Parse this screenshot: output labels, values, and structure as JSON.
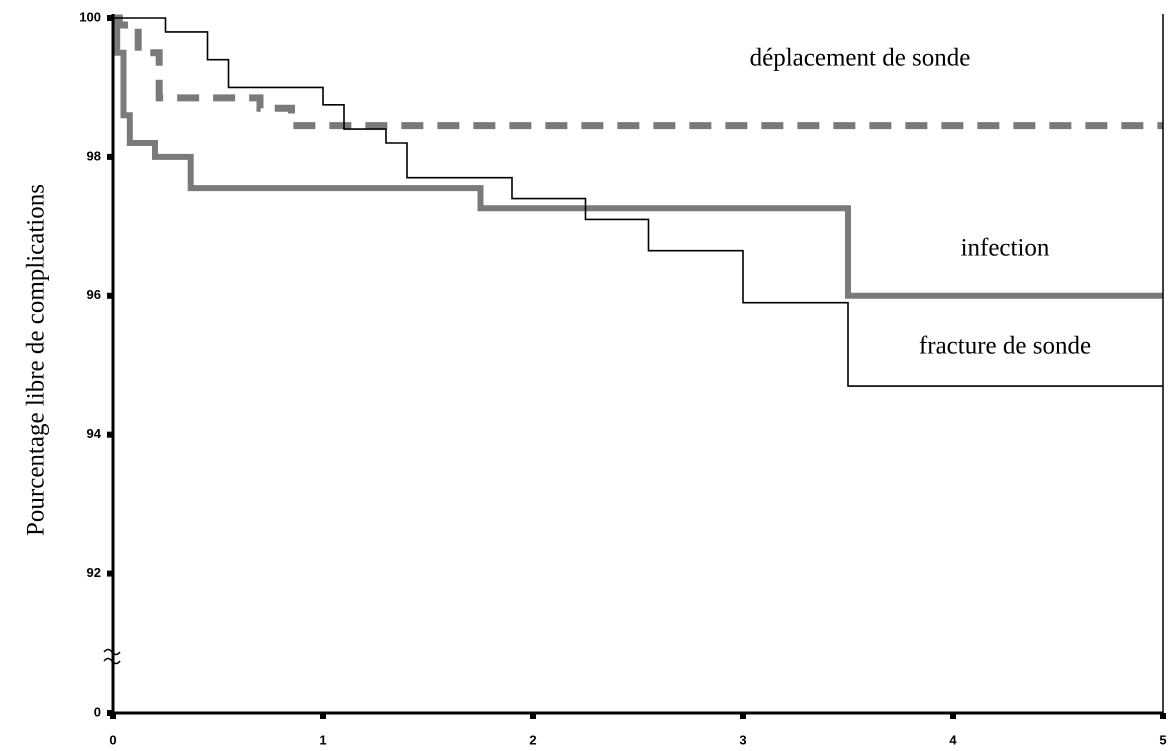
{
  "chart_data": {
    "type": "step",
    "y_label": "Pourcentage libre de complications",
    "xlim": [
      0,
      5
    ],
    "xticks": [
      0,
      1,
      2,
      3,
      4,
      5
    ],
    "ylim": [
      0,
      100
    ],
    "y_break": [
      0,
      91
    ],
    "yticks": [
      0,
      92,
      94,
      96,
      98,
      100
    ],
    "grid": false,
    "series": [
      {
        "name": "déplacement de sonde",
        "color": "#7a7a7a",
        "style": "dashed",
        "x": [
          0,
          0.03,
          0.12,
          0.22,
          0.7,
          0.85
        ],
        "values": [
          100,
          99.9,
          99.5,
          98.85,
          98.7,
          98.45
        ]
      },
      {
        "name": "infection",
        "color": "#7a7a7a",
        "style": "thick",
        "x": [
          0,
          0.02,
          0.05,
          0.08,
          0.2,
          0.37,
          1.75,
          3.5
        ],
        "values": [
          100,
          99.5,
          98.6,
          98.2,
          98.0,
          97.55,
          97.26,
          96.0
        ]
      },
      {
        "name": "fracture de sonde",
        "color": "#000000",
        "style": "thin",
        "x": [
          0,
          0.25,
          0.45,
          0.55,
          1.0,
          1.1,
          1.3,
          1.4,
          1.9,
          2.25,
          2.55,
          3.0,
          3.5
        ],
        "values": [
          100,
          99.8,
          99.4,
          99.0,
          98.75,
          98.4,
          98.2,
          97.7,
          97.4,
          97.1,
          96.65,
          95.9,
          94.7
        ]
      }
    ]
  }
}
